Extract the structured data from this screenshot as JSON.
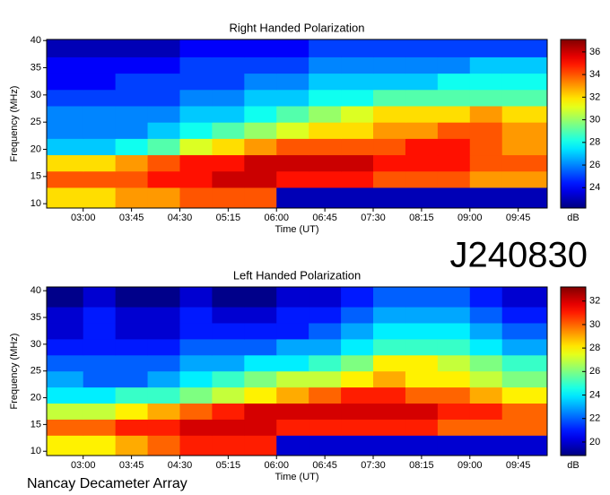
{
  "chart_data": [
    {
      "type": "heatmap",
      "title": "Right Handed Polarization",
      "xlabel": "Time (UT)",
      "ylabel": "Frequency (MHz)",
      "colorbar_label": "dB",
      "colormap": "jet",
      "xlim": [
        146,
        612
      ],
      "xticks": [
        {
          "value": 180,
          "label": "03:00"
        },
        {
          "value": 225,
          "label": "03:45"
        },
        {
          "value": 270,
          "label": "04:30"
        },
        {
          "value": 315,
          "label": "05:15"
        },
        {
          "value": 360,
          "label": "06:00"
        },
        {
          "value": 405,
          "label": "06:45"
        },
        {
          "value": 450,
          "label": "07:30"
        },
        {
          "value": 495,
          "label": "08:15"
        },
        {
          "value": 540,
          "label": "09:00"
        },
        {
          "value": 585,
          "label": "09:45"
        }
      ],
      "ylim": [
        9.2,
        40.2
      ],
      "yticks": [
        10,
        15,
        20,
        25,
        30,
        35,
        40
      ],
      "clim": [
        22.2,
        37.1
      ],
      "cticks": [
        24,
        26,
        28,
        30,
        32,
        34,
        36
      ],
      "xbins": [
        146,
        180,
        210,
        240,
        270,
        300,
        330,
        360,
        390,
        420,
        450,
        480,
        510,
        540,
        570,
        612
      ],
      "ybins": [
        9.2,
        13,
        16,
        19,
        22,
        25,
        28,
        31,
        34,
        37,
        40.2
      ],
      "z": [
        [
          32,
          32,
          33,
          33,
          34,
          34,
          34,
          23,
          23,
          23,
          23,
          23,
          23,
          23,
          23
        ],
        [
          34,
          34,
          34,
          35,
          35,
          36,
          36,
          35,
          35,
          35,
          34,
          34,
          34,
          33,
          33
        ],
        [
          32,
          32,
          33,
          34,
          35,
          35,
          36,
          36,
          36,
          36,
          35,
          35,
          35,
          34,
          34
        ],
        [
          27,
          27,
          28,
          29,
          31,
          32,
          33,
          34,
          34,
          34,
          34,
          35,
          35,
          34,
          33
        ],
        [
          26,
          26,
          26,
          27,
          28,
          29,
          30,
          31,
          32,
          32,
          33,
          33,
          34,
          34,
          33
        ],
        [
          26,
          26,
          26,
          26,
          27,
          27,
          28,
          29,
          30,
          31,
          32,
          32,
          32,
          33,
          32
        ],
        [
          25,
          25,
          25,
          25,
          26,
          26,
          27,
          27,
          28,
          28,
          29,
          29,
          29,
          29,
          29
        ],
        [
          24,
          24,
          25,
          25,
          25,
          25,
          26,
          26,
          27,
          27,
          27,
          27,
          28,
          28,
          28
        ],
        [
          24,
          24,
          24,
          24,
          25,
          25,
          25,
          25,
          26,
          26,
          26,
          26,
          26,
          27,
          27
        ],
        [
          23,
          23,
          23,
          23,
          24,
          24,
          24,
          24,
          25,
          25,
          25,
          25,
          25,
          25,
          25
        ]
      ]
    },
    {
      "type": "heatmap",
      "title": "Left Handed Polarization",
      "xlabel": "Time (UT)",
      "ylabel": "Frequency (MHz)",
      "colorbar_label": "dB",
      "colormap": "jet",
      "xlim": [
        146,
        612
      ],
      "xticks": [
        {
          "value": 180,
          "label": "03:00"
        },
        {
          "value": 225,
          "label": "03:45"
        },
        {
          "value": 270,
          "label": "04:30"
        },
        {
          "value": 315,
          "label": "05:15"
        },
        {
          "value": 360,
          "label": "06:00"
        },
        {
          "value": 405,
          "label": "06:45"
        },
        {
          "value": 450,
          "label": "07:30"
        },
        {
          "value": 495,
          "label": "08:15"
        },
        {
          "value": 540,
          "label": "09:00"
        },
        {
          "value": 585,
          "label": "09:45"
        }
      ],
      "ylim": [
        9.2,
        40.7
      ],
      "yticks": [
        10,
        15,
        20,
        25,
        30,
        35,
        40
      ],
      "clim": [
        18.85,
        33.2
      ],
      "cticks": [
        20,
        22,
        24,
        26,
        28,
        30,
        32
      ],
      "xbins": [
        146,
        180,
        210,
        240,
        270,
        300,
        330,
        360,
        390,
        420,
        450,
        480,
        510,
        540,
        570,
        612
      ],
      "ybins": [
        9.2,
        13,
        16,
        19,
        22,
        25,
        28,
        31,
        34,
        37,
        40.7
      ],
      "z": [
        [
          28,
          28,
          29,
          30,
          31,
          31,
          31,
          20,
          20,
          20,
          20,
          20,
          20,
          20,
          20
        ],
        [
          30,
          30,
          31,
          31,
          32,
          32,
          32,
          31,
          31,
          31,
          31,
          31,
          30,
          30,
          30
        ],
        [
          27,
          27,
          28,
          29,
          30,
          31,
          32,
          32,
          32,
          32,
          32,
          32,
          31,
          31,
          30
        ],
        [
          24,
          24,
          25,
          25,
          26,
          27,
          28,
          29,
          30,
          31,
          31,
          30,
          30,
          29,
          28
        ],
        [
          23,
          22,
          22,
          23,
          24,
          25,
          26,
          27,
          27,
          28,
          29,
          28,
          28,
          27,
          26
        ],
        [
          22,
          22,
          22,
          22,
          23,
          23,
          24,
          24,
          25,
          26,
          28,
          28,
          27,
          26,
          25
        ],
        [
          21,
          21,
          21,
          21,
          22,
          22,
          22,
          23,
          23,
          24,
          25,
          25,
          25,
          24,
          23
        ],
        [
          20,
          21,
          20,
          20,
          21,
          21,
          21,
          21,
          22,
          23,
          24,
          24,
          24,
          23,
          22
        ],
        [
          20,
          21,
          20,
          20,
          21,
          20,
          20,
          21,
          21,
          22,
          23,
          23,
          23,
          22,
          21
        ],
        [
          19,
          20,
          19,
          19,
          20,
          19,
          19,
          20,
          20,
          21,
          22,
          22,
          22,
          21,
          20
        ]
      ]
    }
  ],
  "annotations": {
    "id": "J240830",
    "source": "Nancay Decameter Array"
  }
}
